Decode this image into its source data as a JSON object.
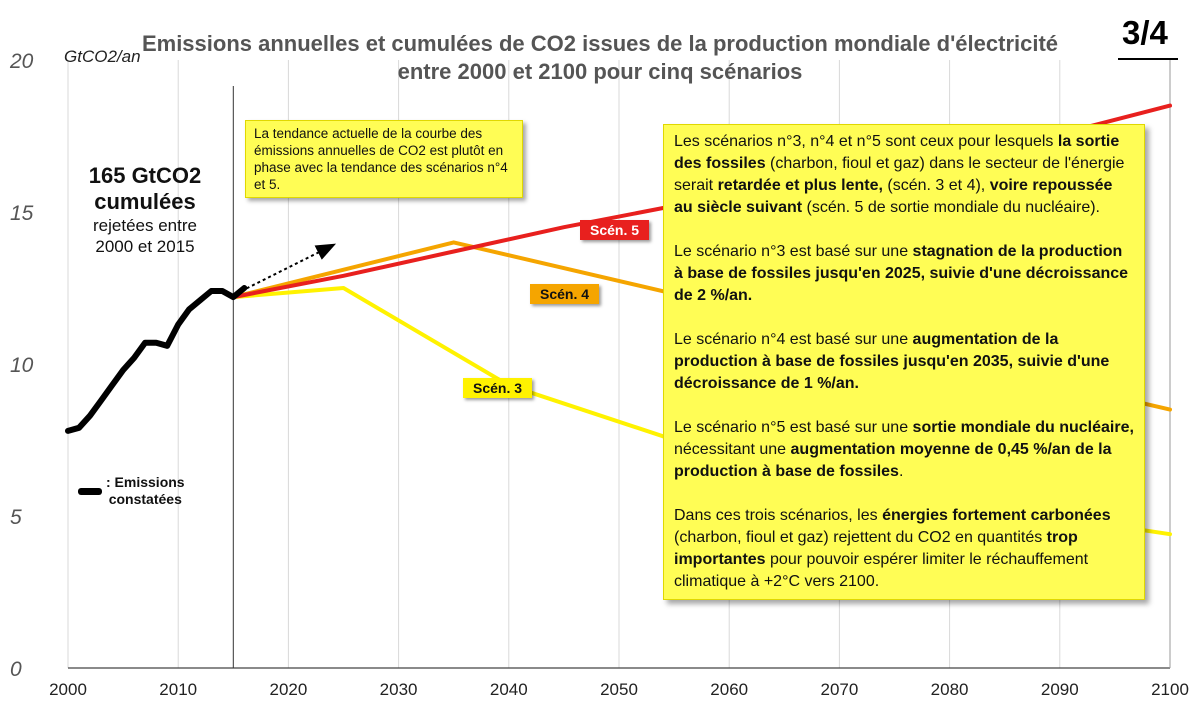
{
  "page_number": "3/4",
  "chart_data": {
    "type": "line",
    "title": "Emissions annuelles et cumulées de CO2 issues de la production mondiale d'électricité entre 2000 et 2100 pour cinq scénarios",
    "ylabel": "GtCO2/an",
    "xlim": [
      2000,
      2100
    ],
    "ylim": [
      0,
      20
    ],
    "x_ticks": [
      2000,
      2010,
      2020,
      2030,
      2040,
      2050,
      2060,
      2070,
      2080,
      2090,
      2100
    ],
    "y_ticks": [
      0,
      5,
      10,
      15,
      20
    ],
    "grid": "vertical",
    "separator_year": 2015,
    "series": [
      {
        "name": "Emissions constatées",
        "color": "#000000",
        "x": [
          2000,
          2001,
          2002,
          2003,
          2004,
          2005,
          2006,
          2007,
          2008,
          2009,
          2010,
          2011,
          2012,
          2013,
          2014,
          2015,
          2016
        ],
        "values": [
          7.8,
          7.9,
          8.3,
          8.8,
          9.3,
          9.8,
          10.2,
          10.7,
          10.7,
          10.6,
          11.3,
          11.8,
          12.1,
          12.4,
          12.4,
          12.2,
          12.5
        ]
      },
      {
        "name": "Scén. 5",
        "color": "#e8201e",
        "x": [
          2015,
          2025,
          2035,
          2045,
          2055,
          2065,
          2075,
          2085,
          2100
        ],
        "values": [
          12.2,
          12.9,
          13.7,
          14.5,
          15.2,
          15.8,
          16.4,
          17.1,
          18.5
        ]
      },
      {
        "name": "Scén. 4",
        "color": "#f5a500",
        "x": [
          2015,
          2035,
          2100
        ],
        "values": [
          12.2,
          14.0,
          8.5
        ]
      },
      {
        "name": "Scén. 3",
        "color": "#fff200",
        "x": [
          2015,
          2025,
          2040,
          2060,
          2080,
          2100
        ],
        "values": [
          12.2,
          12.5,
          9.3,
          6.9,
          5.5,
          4.4
        ]
      }
    ],
    "trend_arrow": {
      "x": [
        2015,
        2024
      ],
      "values": [
        12.4,
        13.9
      ]
    }
  },
  "cumulative": {
    "amount": "165 GtCO2",
    "word": "cumulées",
    "line1": "rejetées entre",
    "line2": "2000 et 2015"
  },
  "legend": {
    "line1": ": Emissions",
    "line2": "constatées"
  },
  "callout_trend": "La tendance actuelle de la courbe des émissions annuelles de CO2 est plutôt en phase avec la tendance des scénarios n°4 et 5.",
  "scenario_labels": {
    "s5": "Scén. 5",
    "s4": "Scén. 4",
    "s3": "Scén. 3"
  },
  "main_box": {
    "p1": [
      "Les scénarios n°3, n°4 et n°5 sont ceux pour lesquels ",
      "la sortie des fossiles",
      " (charbon, fioul et gaz) dans le secteur de l'énergie serait ",
      "retardée et plus lente,",
      " (scén. 3 et 4), ",
      "voire repoussée au siècle suivant",
      " (scén. 5 de sortie mondiale du nucléaire)."
    ],
    "p2": [
      "Le scénario n°3 est basé sur une ",
      "stagnation de la production à base de fossiles jusqu'en 2025, suivie d'une décroissance de 2 %/an."
    ],
    "p3": [
      "Le scénario n°4 est basé sur une ",
      "augmentation de la production à base de fossiles jusqu'en 2035, suivie d'une décroissance de 1 %/an."
    ],
    "p4": [
      "Le scénario n°5 est basé sur une ",
      "sortie mondiale du nucléaire,",
      " nécessitant une ",
      "augmentation moyenne de 0,45 %/an de la production à base de fossiles",
      "."
    ],
    "p5": [
      "Dans ces trois scénarios, les ",
      "énergies fortement carbonées",
      " (charbon, fioul et gaz) rejettent du CO2 en quantités ",
      "trop importantes",
      " pour pouvoir espérer limiter le réchauffement climatique à +2°C vers 2100."
    ]
  }
}
